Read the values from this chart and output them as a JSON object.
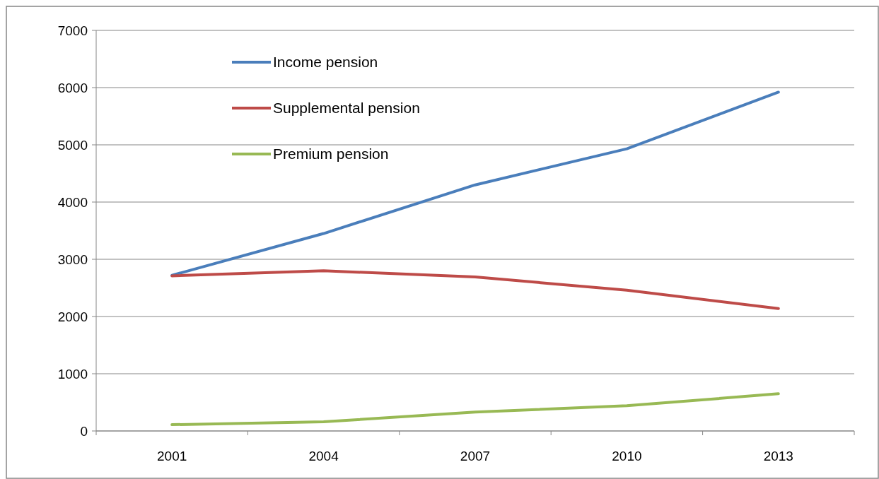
{
  "chart_data": {
    "type": "line",
    "categories": [
      "2001",
      "2004",
      "2007",
      "2010",
      "2013"
    ],
    "series": [
      {
        "name": "Income pension",
        "color": "#4a7ebb",
        "values": [
          2720,
          3450,
          4300,
          4930,
          5920
        ]
      },
      {
        "name": "Supplemental pension",
        "color": "#be4b48",
        "values": [
          2710,
          2800,
          2690,
          2460,
          2140
        ]
      },
      {
        "name": "Premium pension",
        "color": "#98b954",
        "values": [
          110,
          160,
          330,
          440,
          650
        ]
      }
    ],
    "ylim": [
      0,
      7000
    ],
    "yticks": [
      0,
      1000,
      2000,
      3000,
      4000,
      5000,
      6000,
      7000
    ],
    "grid": "y",
    "legend": "top left",
    "marker": "none",
    "line_style": "solid"
  }
}
